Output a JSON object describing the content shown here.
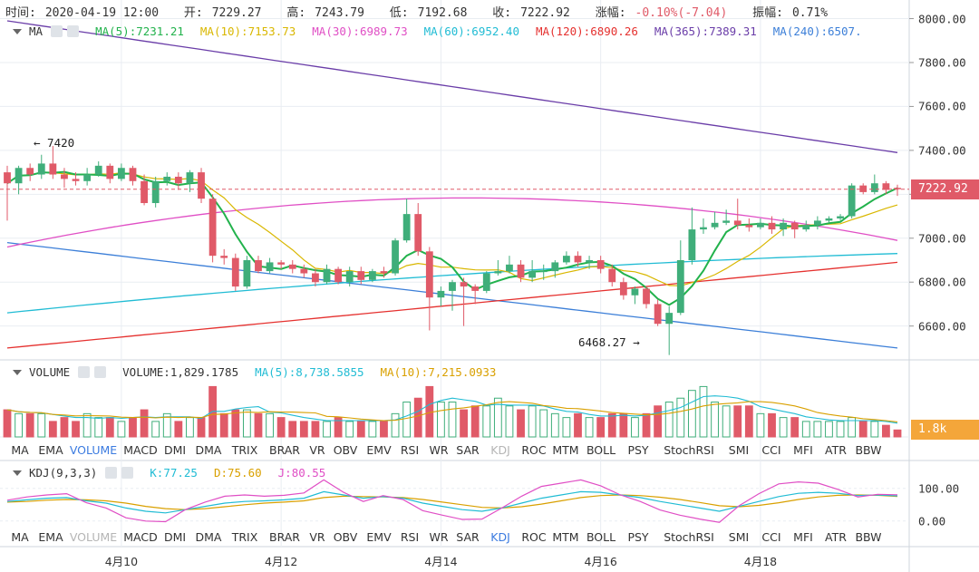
{
  "ohlc_bar": {
    "time_label": "时间:",
    "time": "2020-04-19 12:00",
    "open_label": "开:",
    "open": "7229.27",
    "high_label": "高:",
    "high": "7243.79",
    "low_label": "低:",
    "low": "7192.68",
    "close_label": "收:",
    "close": "7222.92",
    "change_label": "涨幅:",
    "change": "-0.10%(-7.04)",
    "amp_label": "振幅:",
    "amp": "0.71%"
  },
  "main_indicator": {
    "name": "MA",
    "items": [
      {
        "label": "MA(5):7231.21",
        "color": "#22b24c"
      },
      {
        "label": "MA(10):7153.73",
        "color": "#d9b700"
      },
      {
        "label": "MA(30):6989.73",
        "color": "#e04fc5"
      },
      {
        "label": "MA(60):6952.40",
        "color": "#21bcd4"
      },
      {
        "label": "MA(120):6890.26",
        "color": "#e5312f"
      },
      {
        "label": "MA(365):7389.31",
        "color": "#6a3da8"
      },
      {
        "label": "MA(240):6507.",
        "color": "#3c7fd8"
      }
    ]
  },
  "volume_indicator": {
    "name": "VOLUME",
    "items": [
      {
        "label": "VOLUME:1,829.1785",
        "color": "#333333"
      },
      {
        "label": "MA(5):8,738.5855",
        "color": "#21bcd4"
      },
      {
        "label": "MA(10):7,215.0933",
        "color": "#d9a000"
      }
    ],
    "badge": "1.8k",
    "badge_color": "#f4a63a"
  },
  "kdj_indicator": {
    "name": "KDJ(9,3,3)",
    "items": [
      {
        "label": "K:77.25",
        "color": "#21bcd4"
      },
      {
        "label": "D:75.60",
        "color": "#d9a000"
      },
      {
        "label": "J:80.55",
        "color": "#e04fc5"
      }
    ]
  },
  "tabs_upper": {
    "items": [
      "MA",
      "EMA",
      "VOLUME",
      "MACD",
      "DMI",
      "DMA",
      "TRIX",
      "BRAR",
      "VR",
      "OBV",
      "EMV",
      "RSI",
      "WR",
      "SAR",
      "KDJ",
      "ROC",
      "MTM",
      "BOLL",
      "PSY",
      "StochRSI",
      "SMI",
      "CCI",
      "MFI",
      "ATR",
      "BBW"
    ],
    "active": "VOLUME",
    "muted": [
      "KDJ"
    ]
  },
  "tabs_lower": {
    "items": [
      "MA",
      "EMA",
      "VOLUME",
      "MACD",
      "DMI",
      "DMA",
      "TRIX",
      "BRAR",
      "VR",
      "OBV",
      "EMV",
      "RSI",
      "WR",
      "SAR",
      "KDJ",
      "ROC",
      "MTM",
      "BOLL",
      "PSY",
      "StochRSI",
      "SMI",
      "CCI",
      "MFI",
      "ATR",
      "BBW"
    ],
    "active": "KDJ",
    "muted": [
      "VOLUME"
    ]
  },
  "x_axis": {
    "labels": [
      "4月10",
      "4月12",
      "4月14",
      "4月16",
      "4月18"
    ]
  },
  "price_axis": {
    "ticks": [
      "8000.00",
      "7800.00",
      "7600.00",
      "7400.00",
      "7200.00",
      "7000.00",
      "6800.00",
      "6600.00"
    ]
  },
  "current_price": {
    "label": "7222.92",
    "color": "#e05a68"
  },
  "kdj_axis": {
    "ticks": [
      "100.00",
      "0.00"
    ]
  },
  "annotations": {
    "high": "← 7420",
    "low": "6468.27 →"
  },
  "colors": {
    "up": "#3fae7a",
    "down": "#e05a68",
    "grid": "#e9edf2"
  },
  "chart_data": {
    "type": "candlestick",
    "ylim": [
      6450,
      8060
    ],
    "candles": [
      [
        7300,
        7250,
        7330,
        7080
      ],
      [
        7250,
        7320,
        7330,
        7200
      ],
      [
        7320,
        7290,
        7340,
        7260
      ],
      [
        7290,
        7340,
        7380,
        7270
      ],
      [
        7340,
        7290,
        7420,
        7270
      ],
      [
        7290,
        7270,
        7320,
        7230
      ],
      [
        7270,
        7260,
        7300,
        7240
      ],
      [
        7260,
        7290,
        7320,
        7240
      ],
      [
        7290,
        7330,
        7350,
        7280
      ],
      [
        7330,
        7270,
        7340,
        7250
      ],
      [
        7270,
        7320,
        7340,
        7260
      ],
      [
        7320,
        7260,
        7330,
        7240
      ],
      [
        7260,
        7160,
        7290,
        7150
      ],
      [
        7160,
        7260,
        7280,
        7140
      ],
      [
        7260,
        7280,
        7300,
        7240
      ],
      [
        7280,
        7250,
        7300,
        7220
      ],
      [
        7250,
        7300,
        7310,
        7210
      ],
      [
        7300,
        7180,
        7320,
        7160
      ],
      [
        7180,
        6920,
        7200,
        6890
      ],
      [
        6920,
        6910,
        6950,
        6880
      ],
      [
        6910,
        6780,
        6930,
        6760
      ],
      [
        6780,
        6900,
        6920,
        6770
      ],
      [
        6900,
        6850,
        6920,
        6840
      ],
      [
        6850,
        6890,
        6910,
        6840
      ],
      [
        6890,
        6880,
        6900,
        6860
      ],
      [
        6880,
        6860,
        6900,
        6840
      ],
      [
        6860,
        6840,
        6880,
        6820
      ],
      [
        6840,
        6800,
        6860,
        6780
      ],
      [
        6800,
        6860,
        6880,
        6790
      ],
      [
        6860,
        6800,
        6870,
        6790
      ],
      [
        6800,
        6850,
        6870,
        6780
      ],
      [
        6850,
        6810,
        6870,
        6790
      ],
      [
        6810,
        6850,
        6860,
        6800
      ],
      [
        6850,
        6840,
        6870,
        6820
      ],
      [
        6840,
        6990,
        7000,
        6830
      ],
      [
        6990,
        7110,
        7180,
        6980
      ],
      [
        7110,
        6940,
        7160,
        6920
      ],
      [
        6940,
        6730,
        6960,
        6580
      ],
      [
        6730,
        6760,
        6780,
        6690
      ],
      [
        6760,
        6800,
        6810,
        6670
      ],
      [
        6800,
        6780,
        6820,
        6600
      ],
      [
        6780,
        6760,
        6790,
        6700
      ],
      [
        6760,
        6840,
        6850,
        6750
      ],
      [
        6840,
        6850,
        6900,
        6830
      ],
      [
        6850,
        6880,
        6920,
        6840
      ],
      [
        6880,
        6820,
        6900,
        6800
      ],
      [
        6820,
        6850,
        6900,
        6800
      ],
      [
        6850,
        6850,
        6880,
        6810
      ],
      [
        6850,
        6890,
        6900,
        6820
      ],
      [
        6890,
        6920,
        6940,
        6880
      ],
      [
        6920,
        6890,
        6940,
        6870
      ],
      [
        6890,
        6900,
        6920,
        6860
      ],
      [
        6900,
        6860,
        6920,
        6840
      ],
      [
        6860,
        6800,
        6880,
        6780
      ],
      [
        6800,
        6740,
        6820,
        6720
      ],
      [
        6740,
        6770,
        6780,
        6700
      ],
      [
        6770,
        6700,
        6780,
        6680
      ],
      [
        6700,
        6610,
        6720,
        6600
      ],
      [
        6610,
        6660,
        6690,
        6468
      ],
      [
        6660,
        6900,
        6990,
        6650
      ],
      [
        6900,
        7040,
        7140,
        6880
      ],
      [
        7040,
        7050,
        7090,
        7020
      ],
      [
        7050,
        7070,
        7120,
        7040
      ],
      [
        7070,
        7080,
        7130,
        7060
      ],
      [
        7080,
        7060,
        7180,
        7040
      ],
      [
        7060,
        7050,
        7090,
        7030
      ],
      [
        7050,
        7070,
        7090,
        7040
      ],
      [
        7070,
        7040,
        7100,
        7020
      ],
      [
        7040,
        7070,
        7090,
        7010
      ],
      [
        7070,
        7040,
        7080,
        7000
      ],
      [
        7040,
        7060,
        7080,
        7030
      ],
      [
        7060,
        7080,
        7100,
        7040
      ],
      [
        7080,
        7090,
        7100,
        7070
      ],
      [
        7090,
        7100,
        7110,
        7080
      ],
      [
        7100,
        7240,
        7250,
        7090
      ],
      [
        7240,
        7210,
        7250,
        7200
      ],
      [
        7210,
        7250,
        7290,
        7200
      ],
      [
        7250,
        7220,
        7260,
        7200
      ],
      [
        7229.27,
        7222.92,
        7243.79,
        7192.68
      ]
    ],
    "volume": [
      7,
      6,
      6,
      6,
      4,
      5,
      4,
      6,
      5,
      5,
      4,
      5,
      7,
      4,
      6,
      4,
      5,
      5,
      13,
      6,
      7,
      7,
      6,
      6,
      5,
      4,
      4,
      4,
      4,
      5,
      4,
      4,
      4,
      4,
      6,
      9,
      10,
      13,
      9,
      9,
      7,
      8,
      8,
      10,
      8,
      7,
      8,
      7,
      6,
      5,
      6,
      5,
      5,
      6,
      6,
      5,
      6,
      8,
      9,
      10,
      12,
      13,
      9,
      8,
      8,
      8,
      6,
      6,
      5,
      5,
      4,
      4,
      4,
      4,
      5,
      4,
      4,
      3,
      1.8
    ],
    "vol_ylim": [
      0,
      14.5
    ],
    "kdj": {
      "K": [
        60,
        65,
        70,
        72,
        62,
        55,
        40,
        30,
        25,
        35,
        45,
        55,
        60,
        62,
        65,
        70,
        90,
        80,
        70,
        75,
        70,
        55,
        45,
        35,
        30,
        40,
        55,
        70,
        80,
        90,
        88,
        80,
        72,
        60,
        50,
        40,
        30,
        45,
        60,
        75,
        85,
        88,
        85,
        78,
        80,
        77.25
      ],
      "D": [
        58,
        60,
        64,
        66,
        65,
        62,
        55,
        45,
        38,
        35,
        38,
        44,
        50,
        55,
        58,
        62,
        72,
        76,
        75,
        74,
        72,
        66,
        58,
        50,
        42,
        40,
        44,
        52,
        62,
        72,
        78,
        80,
        78,
        73,
        66,
        57,
        47,
        44,
        48,
        56,
        66,
        74,
        79,
        80,
        79,
        75.6
      ],
      "J": [
        64,
        74,
        80,
        84,
        56,
        40,
        10,
        0,
        -2,
        35,
        58,
        76,
        80,
        76,
        79,
        86,
        126,
        88,
        60,
        78,
        66,
        32,
        18,
        5,
        6,
        40,
        76,
        106,
        116,
        126,
        108,
        80,
        60,
        34,
        18,
        6,
        -4,
        47,
        84,
        114,
        120,
        116,
        97,
        74,
        82,
        80.55
      ],
      "ylim": [
        -20,
        130
      ]
    }
  }
}
